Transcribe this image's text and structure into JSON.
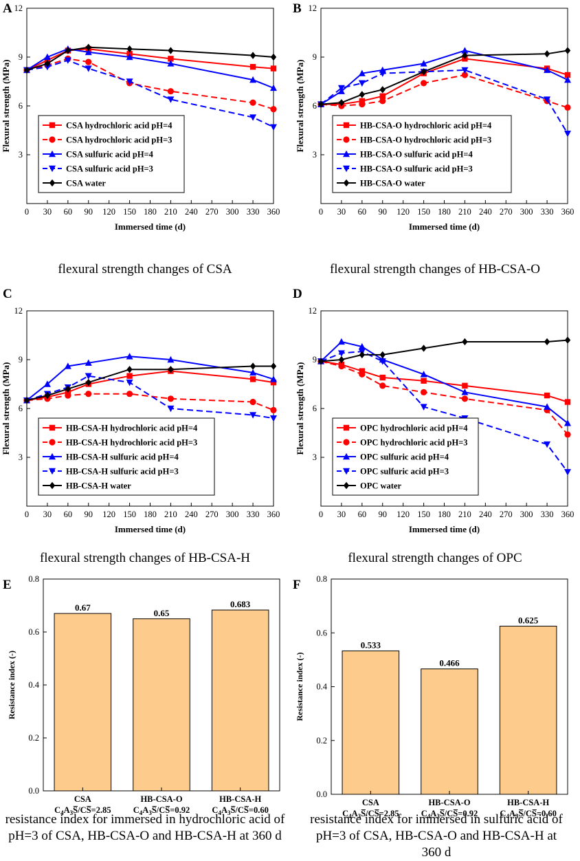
{
  "chart_data": [
    {
      "id": "A",
      "type": "line",
      "panel_letter": "A",
      "caption": "flexural strength changes of CSA",
      "xlabel": "Immersed time (d)",
      "ylabel": "Flexural strength (MPa)",
      "xlim": [
        0,
        360
      ],
      "ylim": [
        0,
        12
      ],
      "xticks": [
        0,
        30,
        60,
        90,
        120,
        150,
        180,
        210,
        240,
        270,
        300,
        330,
        360
      ],
      "yticks": [
        3,
        6,
        9,
        12
      ],
      "series": [
        {
          "name": "CSA hydrochloric acid pH=4",
          "color": "#ff0000",
          "dash": "solid",
          "marker": "square",
          "x": [
            0,
            30,
            60,
            90,
            150,
            210,
            330,
            360
          ],
          "y": [
            8.2,
            8.8,
            9.4,
            9.5,
            9.2,
            8.9,
            8.4,
            8.3
          ]
        },
        {
          "name": "CSA hydrochloric acid pH=3",
          "color": "#ff0000",
          "dash": "dashed",
          "marker": "circle",
          "x": [
            0,
            30,
            60,
            90,
            150,
            210,
            330,
            360
          ],
          "y": [
            8.2,
            8.5,
            8.9,
            8.7,
            7.4,
            6.9,
            6.2,
            5.8
          ]
        },
        {
          "name": "CSA sulfuric acid pH=4",
          "color": "#0000ff",
          "dash": "solid",
          "marker": "triangle-up",
          "x": [
            0,
            30,
            60,
            90,
            150,
            210,
            330,
            360
          ],
          "y": [
            8.2,
            9.0,
            9.5,
            9.3,
            9.0,
            8.6,
            7.6,
            7.1
          ]
        },
        {
          "name": "CSA sulfuric acid pH=3",
          "color": "#0000ff",
          "dash": "dashed",
          "marker": "triangle-down",
          "x": [
            0,
            30,
            60,
            90,
            150,
            210,
            330,
            360
          ],
          "y": [
            8.2,
            8.4,
            8.8,
            8.3,
            7.5,
            6.4,
            5.3,
            4.7
          ]
        },
        {
          "name": "CSA water",
          "color": "#000000",
          "dash": "solid",
          "marker": "diamond",
          "x": [
            0,
            30,
            60,
            90,
            150,
            210,
            330,
            360
          ],
          "y": [
            8.2,
            8.6,
            9.4,
            9.6,
            9.5,
            9.4,
            9.1,
            9.0
          ]
        }
      ]
    },
    {
      "id": "B",
      "type": "line",
      "panel_letter": "B",
      "caption": "flexural strength changes of HB-CSA-O",
      "xlabel": "Immersed time (d)",
      "ylabel": "Flexural strength (MPa)",
      "xlim": [
        0,
        360
      ],
      "ylim": [
        0,
        12
      ],
      "xticks": [
        0,
        30,
        60,
        90,
        120,
        150,
        180,
        210,
        240,
        270,
        300,
        330,
        360
      ],
      "yticks": [
        3,
        6,
        9,
        12
      ],
      "series": [
        {
          "name": "HB-CSA-O hydrochloric acid pH=4",
          "color": "#ff0000",
          "dash": "solid",
          "marker": "square",
          "x": [
            0,
            30,
            60,
            90,
            150,
            210,
            330,
            360
          ],
          "y": [
            6.1,
            6.1,
            6.3,
            6.6,
            8.0,
            8.9,
            8.3,
            7.9
          ]
        },
        {
          "name": "HB-CSA-O hydrochloric acid pH=3",
          "color": "#ff0000",
          "dash": "dashed",
          "marker": "circle",
          "x": [
            0,
            30,
            60,
            90,
            150,
            210,
            330,
            360
          ],
          "y": [
            6.1,
            6.0,
            6.1,
            6.3,
            7.4,
            7.9,
            6.3,
            5.9
          ]
        },
        {
          "name": "HB-CSA-O sulfuric acid pH=4",
          "color": "#0000ff",
          "dash": "solid",
          "marker": "triangle-up",
          "x": [
            0,
            30,
            60,
            90,
            150,
            210,
            330,
            360
          ],
          "y": [
            6.1,
            6.9,
            8.0,
            8.2,
            8.6,
            9.4,
            8.2,
            7.6
          ]
        },
        {
          "name": "HB-CSA-O sulfuric acid pH=3",
          "color": "#0000ff",
          "dash": "dashed",
          "marker": "triangle-down",
          "x": [
            0,
            30,
            60,
            90,
            150,
            210,
            330,
            360
          ],
          "y": [
            6.1,
            7.1,
            7.4,
            8.0,
            8.1,
            8.2,
            6.4,
            4.3
          ]
        },
        {
          "name": "HB-CSA-O water",
          "color": "#000000",
          "dash": "solid",
          "marker": "diamond",
          "x": [
            0,
            30,
            60,
            90,
            150,
            210,
            330,
            360
          ],
          "y": [
            6.1,
            6.2,
            6.7,
            7.0,
            8.1,
            9.1,
            9.2,
            9.4
          ]
        }
      ]
    },
    {
      "id": "C",
      "type": "line",
      "panel_letter": "C",
      "caption": "flexural strength changes of HB-CSA-H",
      "xlabel": "Immersed time (d)",
      "ylabel": "Flexural strength (MPa)",
      "xlim": [
        0,
        360
      ],
      "ylim": [
        0,
        12
      ],
      "xticks": [
        0,
        30,
        60,
        90,
        120,
        150,
        180,
        210,
        240,
        270,
        300,
        330,
        360
      ],
      "yticks": [
        3,
        6,
        9,
        12
      ],
      "series": [
        {
          "name": "HB-CSA-H hydrochloric acid pH=4",
          "color": "#ff0000",
          "dash": "solid",
          "marker": "square",
          "x": [
            0,
            30,
            60,
            90,
            150,
            210,
            330,
            360
          ],
          "y": [
            6.5,
            6.7,
            7.0,
            7.5,
            8.0,
            8.3,
            7.8,
            7.6
          ]
        },
        {
          "name": "HB-CSA-H hydrochloric acid pH=3",
          "color": "#ff0000",
          "dash": "dashed",
          "marker": "circle",
          "x": [
            0,
            30,
            60,
            90,
            150,
            210,
            330,
            360
          ],
          "y": [
            6.5,
            6.6,
            6.8,
            6.9,
            6.9,
            6.6,
            6.4,
            5.9
          ]
        },
        {
          "name": "HB-CSA-H sulfuric acid pH=4",
          "color": "#0000ff",
          "dash": "solid",
          "marker": "triangle-up",
          "x": [
            0,
            30,
            60,
            90,
            150,
            210,
            330,
            360
          ],
          "y": [
            6.5,
            7.5,
            8.6,
            8.8,
            9.2,
            9.0,
            8.2,
            7.8
          ]
        },
        {
          "name": "HB-CSA-H sulfuric acid pH=3",
          "color": "#0000ff",
          "dash": "dashed",
          "marker": "triangle-down",
          "x": [
            0,
            30,
            60,
            90,
            150,
            210,
            330,
            360
          ],
          "y": [
            6.5,
            6.9,
            7.3,
            8.0,
            7.6,
            6.0,
            5.6,
            5.4
          ]
        },
        {
          "name": "HB-CSA-H water",
          "color": "#000000",
          "dash": "solid",
          "marker": "diamond",
          "x": [
            0,
            30,
            60,
            90,
            150,
            210,
            330,
            360
          ],
          "y": [
            6.5,
            6.8,
            7.2,
            7.6,
            8.4,
            8.4,
            8.6,
            8.6
          ]
        }
      ]
    },
    {
      "id": "D",
      "type": "line",
      "panel_letter": "D",
      "caption": "flexural strength changes of OPC",
      "xlabel": "Immersed time (d)",
      "ylabel": "Flexural strength (MPa)",
      "xlim": [
        0,
        360
      ],
      "ylim": [
        0,
        12
      ],
      "xticks": [
        0,
        30,
        60,
        90,
        120,
        150,
        180,
        210,
        240,
        270,
        300,
        330,
        360
      ],
      "yticks": [
        3,
        6,
        9,
        12
      ],
      "series": [
        {
          "name": "OPC hydrochloric acid pH=4",
          "color": "#ff0000",
          "dash": "solid",
          "marker": "square",
          "x": [
            0,
            30,
            60,
            90,
            150,
            210,
            330,
            360
          ],
          "y": [
            8.9,
            8.7,
            8.3,
            7.9,
            7.7,
            7.4,
            6.8,
            6.4
          ]
        },
        {
          "name": "OPC hydrochloric acid pH=3",
          "color": "#ff0000",
          "dash": "dashed",
          "marker": "circle",
          "x": [
            0,
            30,
            60,
            90,
            150,
            210,
            330,
            360
          ],
          "y": [
            8.9,
            8.6,
            8.1,
            7.4,
            7.0,
            6.6,
            5.9,
            4.4
          ]
        },
        {
          "name": "OPC sulfuric acid pH=4",
          "color": "#0000ff",
          "dash": "solid",
          "marker": "triangle-up",
          "x": [
            0,
            30,
            60,
            90,
            150,
            210,
            330,
            360
          ],
          "y": [
            8.9,
            10.1,
            9.8,
            9.0,
            8.1,
            7.0,
            6.1,
            5.1
          ]
        },
        {
          "name": "OPC sulfuric acid pH=3",
          "color": "#0000ff",
          "dash": "dashed",
          "marker": "triangle-down",
          "x": [
            0,
            30,
            60,
            90,
            150,
            210,
            330,
            360
          ],
          "y": [
            8.9,
            9.4,
            9.5,
            8.9,
            6.1,
            5.4,
            3.8,
            2.1
          ]
        },
        {
          "name": "OPC water",
          "color": "#000000",
          "dash": "solid",
          "marker": "diamond",
          "x": [
            0,
            30,
            60,
            90,
            150,
            210,
            330,
            360
          ],
          "y": [
            8.9,
            9.0,
            9.3,
            9.3,
            9.7,
            10.1,
            10.1,
            10.2
          ]
        }
      ]
    },
    {
      "id": "E",
      "type": "bar",
      "panel_letter": "E",
      "caption": "resistance index for immersed in hydrochloric acid of pH=3 of CSA, HB-CSA-O and HB-CSA-H at 360 d",
      "ylabel": "Resistance index (-)",
      "ylim": [
        0,
        0.8
      ],
      "yticks": [
        0.0,
        0.2,
        0.4,
        0.6,
        0.8
      ],
      "ytick_labels": [
        "0.0",
        "0.2",
        "0.4",
        "0.6",
        "0.8"
      ],
      "bar_color": "#fdcb8b",
      "categories": [
        "CSA",
        "HB-CSA-O",
        "HB-CSA-H"
      ],
      "ratios": [
        "2.85",
        "0.92",
        "0.60"
      ],
      "values": [
        0.67,
        0.65,
        0.683
      ],
      "value_labels": [
        "0.67",
        "0.65",
        "0.683"
      ]
    },
    {
      "id": "F",
      "type": "bar",
      "panel_letter": "F",
      "caption": "resistance index for immersed in sulfuric acid of pH=3 of CSA, HB-CSA-O and HB-CSA-H at 360 d",
      "ylabel": "Resistance index (-)",
      "ylim": [
        0,
        0.8
      ],
      "yticks": [
        0.0,
        0.2,
        0.4,
        0.6,
        0.8
      ],
      "ytick_labels": [
        "0.0",
        "0.2",
        "0.4",
        "0.6",
        "0.8"
      ],
      "bar_color": "#fdcb8b",
      "categories": [
        "CSA",
        "HB-CSA-O",
        "HB-CSA-H"
      ],
      "ratios": [
        "2.85",
        "0.92",
        "0.60"
      ],
      "values": [
        0.533,
        0.466,
        0.625
      ],
      "value_labels": [
        "0.533",
        "0.466",
        "0.625"
      ]
    }
  ]
}
